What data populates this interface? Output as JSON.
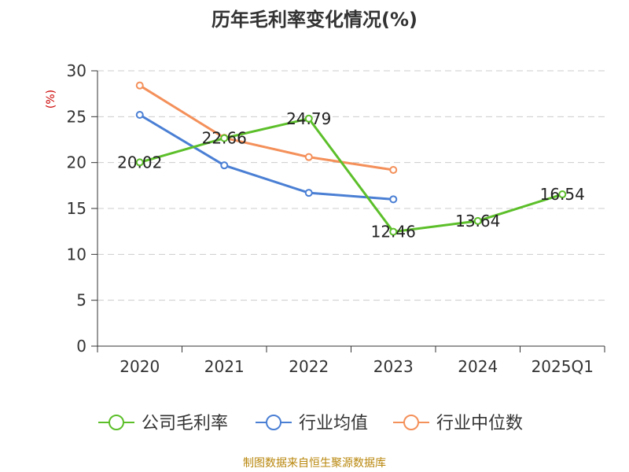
{
  "chart_data": {
    "type": "line",
    "title": "历年毛利率变化情况(%)",
    "ylabel": "(%)",
    "categories": [
      "2020",
      "2021",
      "2022",
      "2023",
      "2024",
      "2025Q1"
    ],
    "ylim": [
      0,
      30
    ],
    "yticks": [
      "0",
      "5",
      "10",
      "15",
      "20",
      "25",
      "30"
    ],
    "grid": true,
    "legend_position": "bottom",
    "series": [
      {
        "name": "公司毛利率",
        "color": "#5cbf2a",
        "values": [
          20.02,
          22.66,
          24.79,
          12.46,
          13.64,
          16.54
        ],
        "labels": [
          "20.02",
          "22.66",
          "24.79",
          "12.46",
          "13.64",
          "16.54"
        ]
      },
      {
        "name": "行业均值",
        "color": "#4a7fd4",
        "values": [
          25.2,
          19.7,
          16.7,
          16.0,
          null,
          null
        ]
      },
      {
        "name": "行业中位数",
        "color": "#f4905a",
        "values": [
          28.4,
          22.7,
          20.6,
          19.2,
          null,
          null
        ]
      }
    ]
  },
  "source": "制图数据来自恒生聚源数据库"
}
